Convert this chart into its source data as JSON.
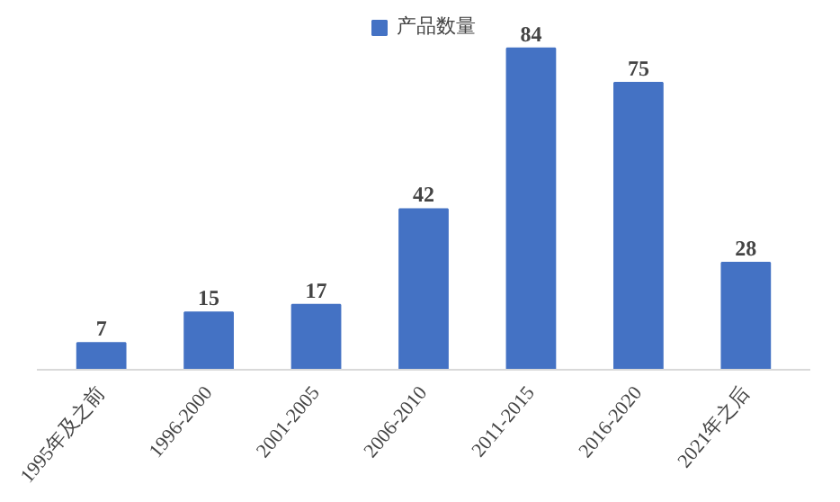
{
  "chart_data": {
    "type": "bar",
    "categories": [
      "1995年及之前",
      "1996-2000",
      "2001-2005",
      "2006-2010",
      "2011-2015",
      "2016-2020",
      "2021年之后"
    ],
    "series": [
      {
        "name": "产品数量",
        "color": "#4472c4",
        "values": [
          7,
          15,
          17,
          42,
          84,
          75,
          28
        ]
      }
    ],
    "data_labels": true,
    "legend": "top"
  }
}
